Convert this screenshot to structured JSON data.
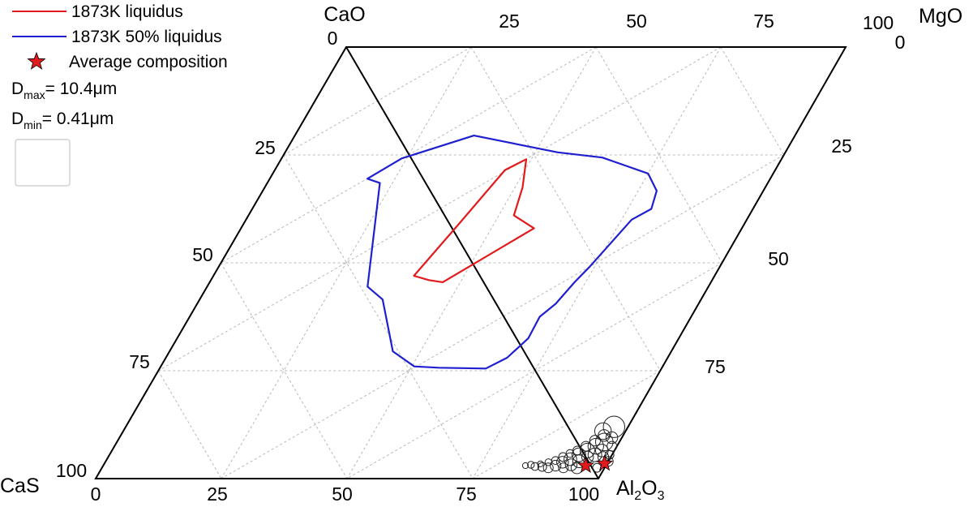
{
  "chart_data": {
    "type": "scatter",
    "title": "",
    "diagram": "quaternary-projection",
    "vertices": {
      "top_left": "CaO",
      "top_right": "MgO",
      "bottom_left": "CaS",
      "bottom_right": {
        "main": "Al",
        "sub": "2",
        "main2": "O",
        "sub2": "3"
      }
    },
    "ticks": {
      "bottom": [
        "0",
        "25",
        "50",
        "75",
        "100"
      ],
      "left": [
        "0",
        "25",
        "50",
        "75",
        "100"
      ],
      "top": [
        "25",
        "50",
        "75",
        "100"
      ],
      "right": [
        "0",
        "25",
        "50",
        "75"
      ]
    },
    "legend": {
      "placement": "top-left",
      "entries": [
        {
          "label": "1873K liquidus",
          "color": "#e31a1c",
          "marker": "line"
        },
        {
          "label": "1873K 50% liquidus",
          "color": "#1f1fd0",
          "marker": "line"
        },
        {
          "label": "Average composition",
          "color": "#e31a1c",
          "marker": "star"
        }
      ],
      "dmax": {
        "main": "D",
        "sub": "max",
        "value": "= 10.4μm"
      },
      "dmin": {
        "main": "D",
        "sub": "min",
        "value": "= 0.41μm"
      }
    },
    "grid": true,
    "series": [
      {
        "name": "1873K 50% liquidus",
        "color": "#1f1fd0",
        "closed": true,
        "points": [
          [
            0.505,
            0.74
          ],
          [
            0.445,
            0.705
          ],
          [
            0.365,
            0.585
          ],
          [
            0.32,
            0.555
          ],
          [
            0.225,
            0.315
          ],
          [
            0.195,
            0.305
          ],
          [
            0.24,
            0.258
          ],
          [
            0.358,
            0.205
          ],
          [
            0.545,
            0.244
          ],
          [
            0.64,
            0.256
          ],
          [
            0.75,
            0.293
          ],
          [
            0.787,
            0.333
          ],
          [
            0.797,
            0.375
          ],
          [
            0.77,
            0.4
          ],
          [
            0.74,
            0.51
          ],
          [
            0.728,
            0.545
          ],
          [
            0.715,
            0.595
          ],
          [
            0.698,
            0.625
          ],
          [
            0.7,
            0.675
          ],
          [
            0.68,
            0.72
          ],
          [
            0.65,
            0.745
          ],
          [
            0.555,
            0.743
          ]
        ]
      },
      {
        "name": "1873K liquidus",
        "color": "#e31a1c",
        "closed": true,
        "points": [
          [
            0.435,
            0.54
          ],
          [
            0.465,
            0.545
          ],
          [
            0.585,
            0.42
          ],
          [
            0.53,
            0.39
          ],
          [
            0.515,
            0.325
          ],
          [
            0.49,
            0.26
          ],
          [
            0.46,
            0.285
          ],
          [
            0.43,
            0.41
          ],
          [
            0.4,
            0.53
          ]
        ]
      }
    ],
    "average_composition": [
      [
        0.96,
        0.97
      ],
      [
        0.995,
        0.965
      ]
    ],
    "inclusion_circles": [
      [
        0.84,
        0.97,
        0.006
      ],
      [
        0.85,
        0.968,
        0.007
      ],
      [
        0.86,
        0.972,
        0.008
      ],
      [
        0.868,
        0.966,
        0.006
      ],
      [
        0.875,
        0.973,
        0.009
      ],
      [
        0.882,
        0.962,
        0.007
      ],
      [
        0.888,
        0.975,
        0.01
      ],
      [
        0.894,
        0.958,
        0.008
      ],
      [
        0.9,
        0.97,
        0.011
      ],
      [
        0.905,
        0.95,
        0.009
      ],
      [
        0.91,
        0.962,
        0.012
      ],
      [
        0.915,
        0.942,
        0.008
      ],
      [
        0.918,
        0.975,
        0.01
      ],
      [
        0.922,
        0.955,
        0.013
      ],
      [
        0.926,
        0.935,
        0.009
      ],
      [
        0.93,
        0.968,
        0.012
      ],
      [
        0.934,
        0.945,
        0.014
      ],
      [
        0.938,
        0.925,
        0.01
      ],
      [
        0.942,
        0.96,
        0.013
      ],
      [
        0.946,
        0.935,
        0.015
      ],
      [
        0.95,
        0.912,
        0.011
      ],
      [
        0.954,
        0.95,
        0.012
      ],
      [
        0.958,
        0.925,
        0.016
      ],
      [
        0.962,
        0.9,
        0.012
      ],
      [
        0.966,
        0.945,
        0.014
      ],
      [
        0.97,
        0.915,
        0.018
      ],
      [
        0.975,
        0.935,
        0.013
      ],
      [
        0.98,
        0.905,
        0.012
      ],
      [
        0.985,
        0.95,
        0.011
      ],
      [
        0.99,
        0.925,
        0.01
      ],
      [
        0.995,
        0.945,
        0.009
      ],
      [
        1.0,
        0.96,
        0.01
      ],
      [
        0.972,
        0.88,
        0.022
      ],
      [
        0.955,
        0.89,
        0.017
      ],
      [
        0.945,
        0.975,
        0.012
      ],
      [
        0.985,
        0.975,
        0.009
      ]
    ]
  }
}
